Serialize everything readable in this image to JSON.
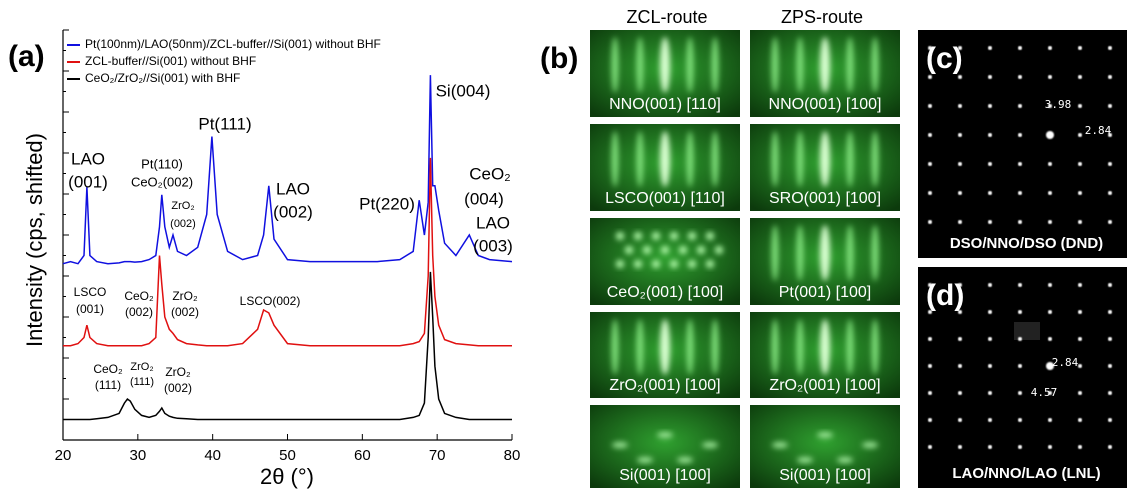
{
  "chart_data": {
    "type": "line",
    "panel_label": "(a)",
    "xlabel": "2θ (°)",
    "ylabel": "Intensity (cps, shifted)",
    "xlim": [
      20,
      80
    ],
    "xticks": [
      20,
      30,
      40,
      50,
      60,
      70,
      80
    ],
    "ylim": [
      0,
      100
    ],
    "x": [
      20,
      21,
      22,
      22.8,
      23.2,
      23.6,
      24.5,
      26,
      27.5,
      28.2,
      28.6,
      29.0,
      29.6,
      30.5,
      31.5,
      32.4,
      32.9,
      33.2,
      33.6,
      34.2,
      34.7,
      35.3,
      36.5,
      38,
      39.2,
      39.9,
      40.6,
      42,
      44,
      46,
      46.8,
      47.5,
      48.2,
      50,
      53,
      56,
      59,
      62,
      65,
      66.8,
      67.6,
      68.3,
      68.8,
      69.1,
      69.4,
      69.7,
      70.2,
      71,
      72.5,
      74.3,
      75.5,
      77,
      80
    ],
    "series": [
      {
        "name": "Pt(100nm)/LAO(50nm)/ZCL-buffer//Si(001) without BHF",
        "color": "#1010e0",
        "values": [
          43,
          43.5,
          43,
          45,
          61.7,
          45,
          43.5,
          43,
          43.2,
          43.5,
          43.5,
          43.5,
          43.4,
          43.5,
          44,
          45,
          52,
          59.8,
          52,
          47,
          50,
          46,
          45,
          47,
          55,
          74,
          55,
          46,
          44,
          45,
          50,
          62,
          49,
          44,
          43.5,
          43.5,
          43.5,
          43.5,
          44,
          46,
          58.5,
          50,
          58,
          89,
          62,
          62,
          56,
          48,
          45,
          50,
          45,
          44,
          43.5
        ]
      },
      {
        "name": "ZCL-buffer//Si(001) without BHF",
        "color": "#e01010",
        "values": [
          23,
          23,
          23.5,
          25,
          28,
          25,
          23.5,
          23,
          23,
          23,
          23,
          23,
          23,
          23,
          23.5,
          25,
          45,
          38,
          30,
          27,
          26,
          24.5,
          23.5,
          23.2,
          23,
          23,
          23,
          23,
          23.5,
          27,
          31.7,
          31,
          28,
          23.5,
          23,
          23,
          23,
          23,
          23,
          23.5,
          24,
          26,
          40,
          68.8,
          45,
          35,
          28,
          24.5,
          23.5,
          23.2,
          23,
          23,
          23
        ]
      },
      {
        "name": "CeO₂/ZrO₂//Si(001) with BHF",
        "color": "#000000",
        "values": [
          5,
          5,
          5,
          5,
          5,
          5,
          5.2,
          5.5,
          6.5,
          9,
          10,
          9.5,
          7.5,
          6,
          5.5,
          6,
          7,
          7.8,
          6.5,
          5.8,
          5.5,
          5.3,
          5.2,
          5,
          5,
          5,
          5,
          5,
          5,
          5,
          5,
          5,
          5,
          5,
          5,
          5,
          5,
          5,
          5,
          5.5,
          6,
          9,
          25,
          41,
          30,
          18,
          10,
          6.5,
          5.5,
          5,
          5,
          5,
          5
        ]
      }
    ],
    "annotations": [
      "LAO",
      "(001)",
      "Pt(110)",
      "CeO₂(002)",
      "ZrO₂",
      "(002)",
      "Pt(111)",
      "LAO",
      "(002)",
      "Pt(220)",
      "Si(004)",
      "CeO₂",
      "(004)",
      "LAO",
      "(003)",
      "LSCO",
      "(001)",
      "CeO₂",
      "(002)",
      "ZrO₂",
      "(002)",
      "LSCO(002)",
      "CeO₂",
      "(111)",
      "ZrO₂",
      "(111)",
      "ZrO₂",
      "(002)"
    ]
  },
  "rheed": {
    "panel_label": "(b)",
    "columns": [
      "ZCL-route",
      "ZPS-route"
    ],
    "labels": [
      [
        "NNO(001) [110]",
        "NNO(001) [100]"
      ],
      [
        "LSCO(001) [110]",
        "SRO(001) [100]"
      ],
      [
        "CeO₂(001) [100]",
        "Pt(001) [100]"
      ],
      [
        "ZrO₂(001) [100]",
        "ZrO₂(001) [100]"
      ],
      [
        "Si(001) [100]",
        "Si(001) [100]"
      ]
    ]
  },
  "diffraction": [
    {
      "panel_label": "(c)",
      "spacings": [
        3.98,
        2.84
      ],
      "caption": "DSO/NNO/DSO (DND)"
    },
    {
      "panel_label": "(d)",
      "spacings": [
        2.84,
        4.57
      ],
      "caption": "LAO/NNO/LAO (LNL)"
    }
  ]
}
